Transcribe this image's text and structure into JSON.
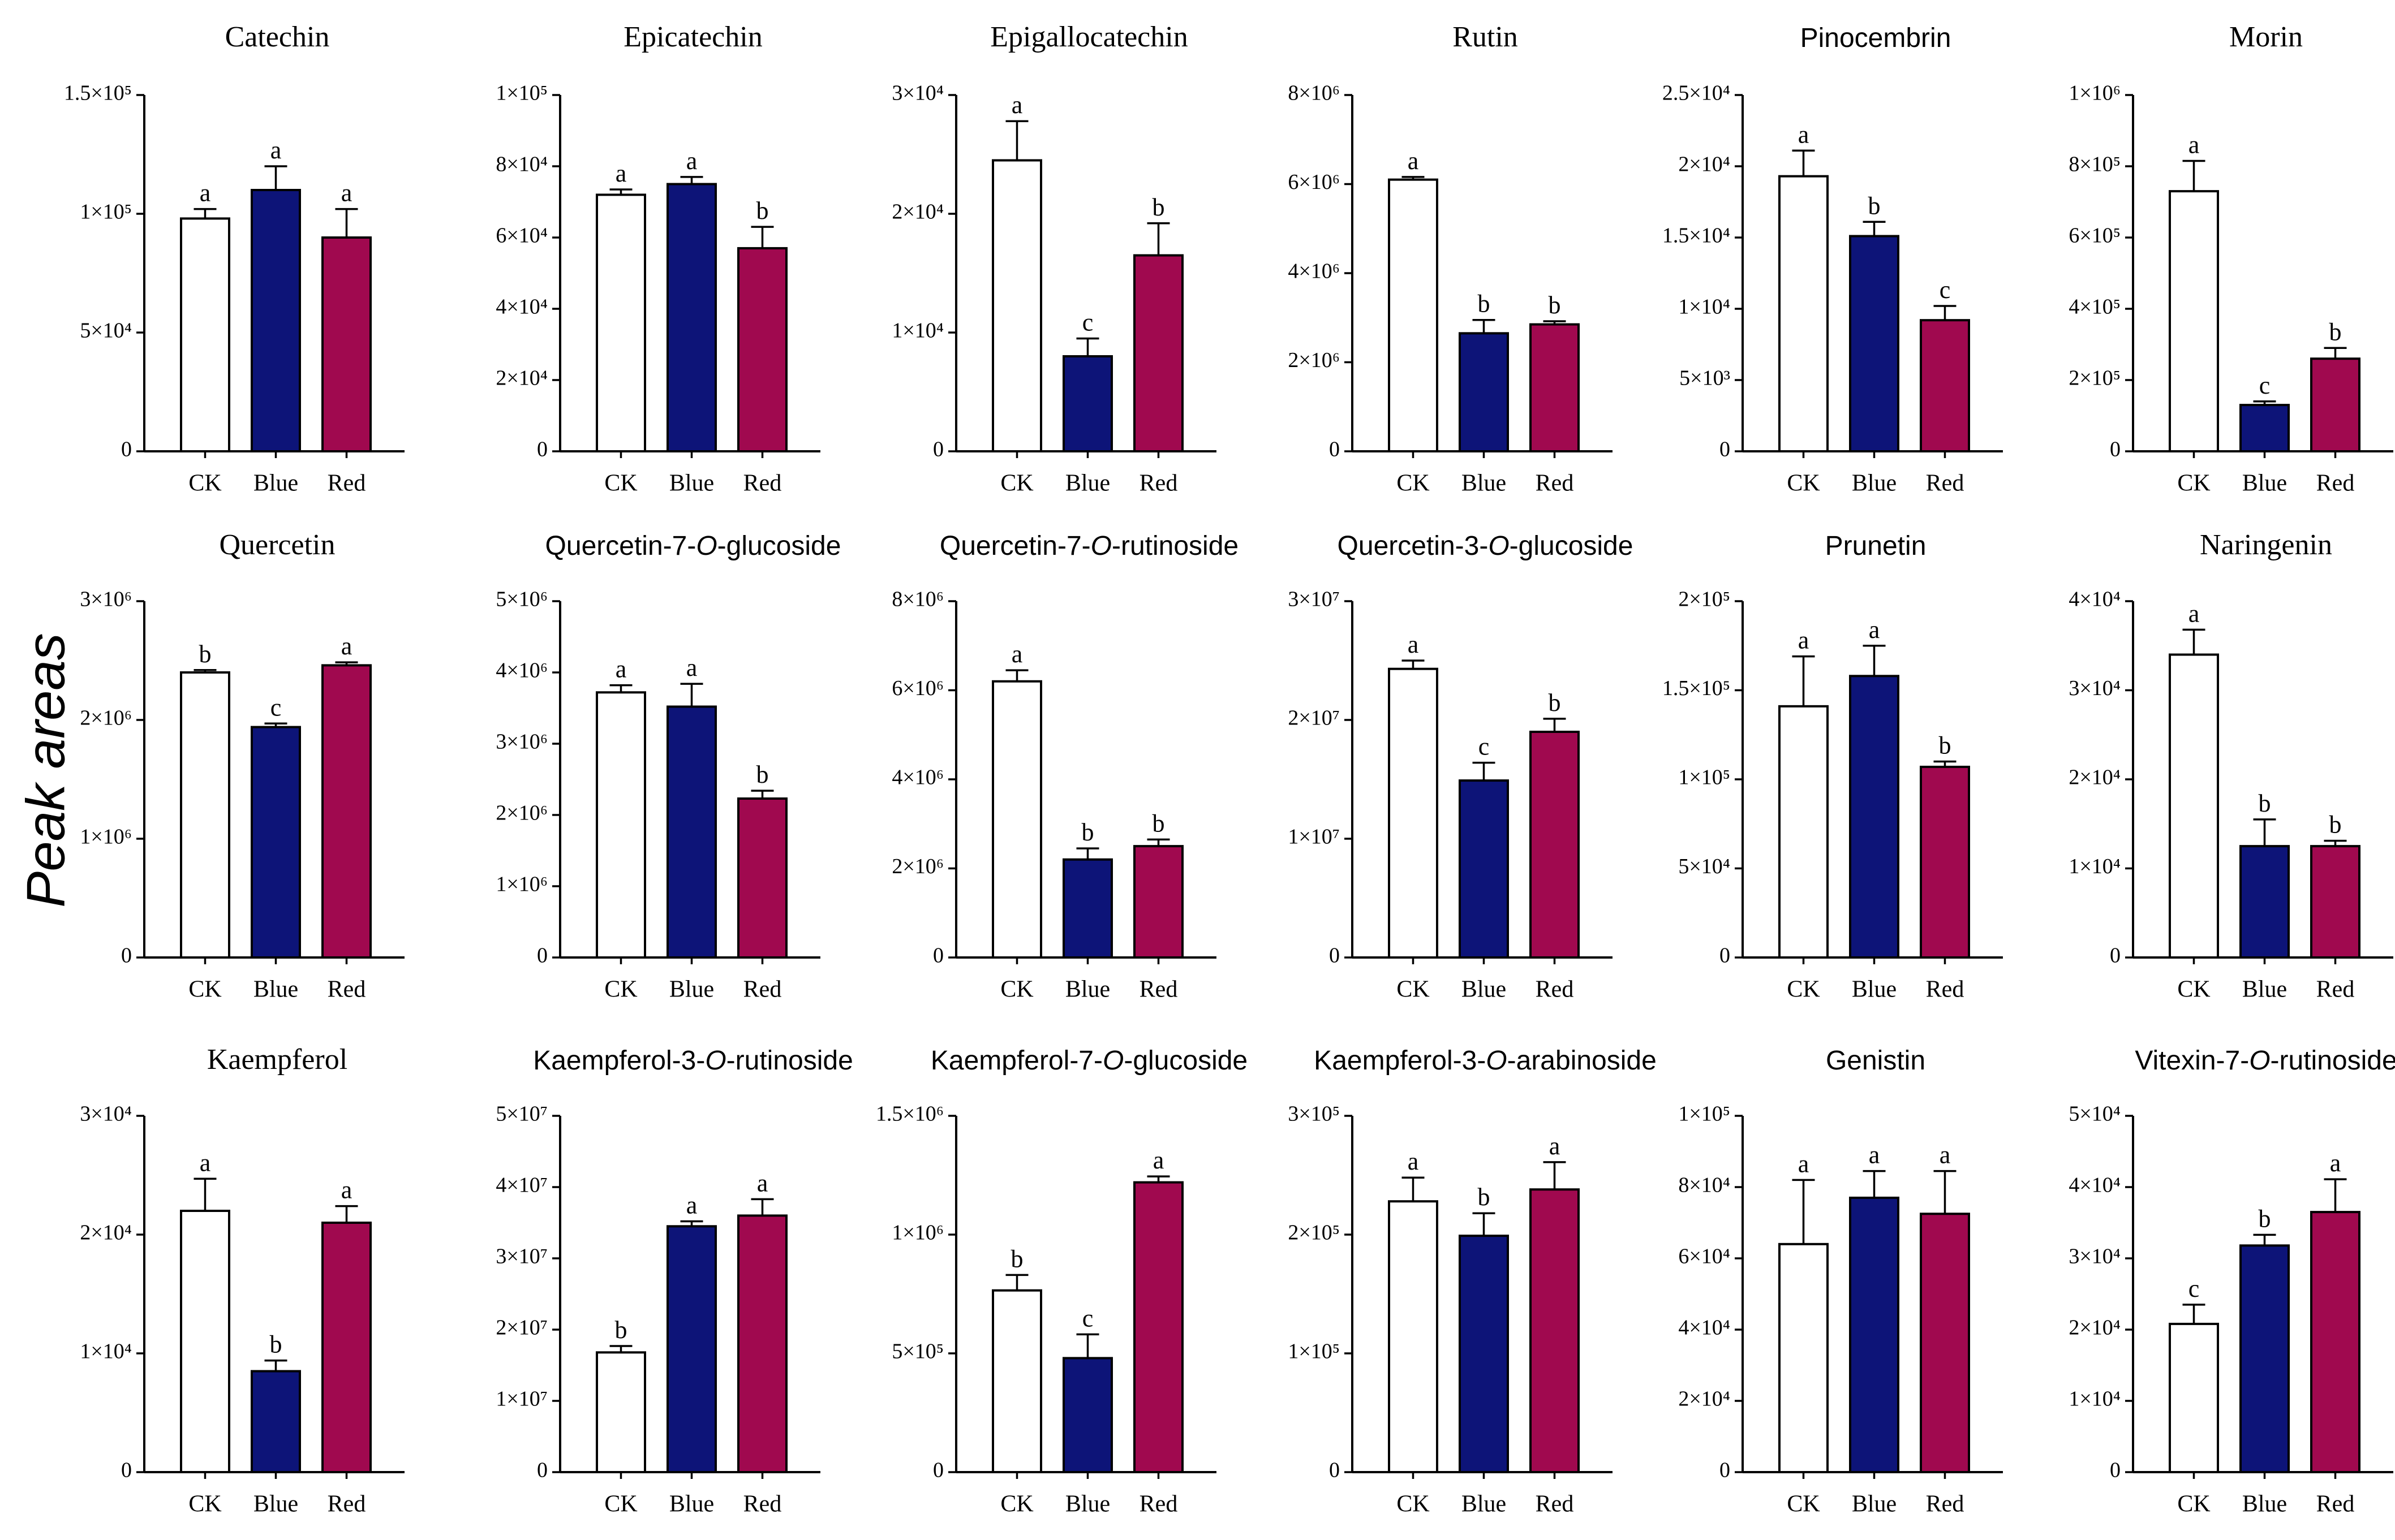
{
  "figure": {
    "ylabel": "Peak areas",
    "colors": {
      "CK": "#ffffff",
      "Blue": "#0d1478",
      "Red": "#a0094f",
      "axis": "#000000"
    }
  },
  "chart_data": [
    {
      "type": "bar",
      "title": "Catechin",
      "title_parts": [
        {
          "t": "Catechin"
        }
      ],
      "categories": [
        "CK",
        "Blue",
        "Red"
      ],
      "values": [
        98000,
        110000,
        90000
      ],
      "errors": [
        4000,
        10000,
        12000
      ],
      "letters": [
        "a",
        "a",
        "a"
      ],
      "ylim": [
        0,
        150000
      ],
      "yticks": [
        {
          "value": 0,
          "label": "0"
        },
        {
          "value": 50000,
          "label": "5×10⁴"
        },
        {
          "value": 100000,
          "label": "1×10⁵"
        },
        {
          "value": 150000,
          "label": "1.5×10⁵"
        }
      ]
    },
    {
      "type": "bar",
      "title": "Epicatechin",
      "title_parts": [
        {
          "t": "Epicatechin"
        }
      ],
      "categories": [
        "CK",
        "Blue",
        "Red"
      ],
      "values": [
        72000,
        75000,
        57000
      ],
      "errors": [
        1500,
        2000,
        6000
      ],
      "letters": [
        "a",
        "a",
        "b"
      ],
      "ylim": [
        0,
        100000
      ],
      "yticks": [
        {
          "value": 0,
          "label": "0"
        },
        {
          "value": 20000,
          "label": "2×10⁴"
        },
        {
          "value": 40000,
          "label": "4×10⁴"
        },
        {
          "value": 60000,
          "label": "6×10⁴"
        },
        {
          "value": 80000,
          "label": "8×10⁴"
        },
        {
          "value": 100000,
          "label": "1×10⁵"
        }
      ]
    },
    {
      "type": "bar",
      "title": "Epigallocatechin",
      "title_parts": [
        {
          "t": "Epigallocatechin"
        }
      ],
      "categories": [
        "CK",
        "Blue",
        "Red"
      ],
      "values": [
        24500,
        8000,
        16500
      ],
      "errors": [
        3300,
        1500,
        2700
      ],
      "letters": [
        "a",
        "c",
        "b"
      ],
      "ylim": [
        0,
        30000
      ],
      "yticks": [
        {
          "value": 0,
          "label": "0"
        },
        {
          "value": 10000,
          "label": "1×10⁴"
        },
        {
          "value": 20000,
          "label": "2×10⁴"
        },
        {
          "value": 30000,
          "label": "3×10⁴"
        }
      ]
    },
    {
      "type": "bar",
      "title": "Rutin",
      "title_parts": [
        {
          "t": "Rutin"
        }
      ],
      "categories": [
        "CK",
        "Blue",
        "Red"
      ],
      "values": [
        6100000,
        2650000,
        2850000
      ],
      "errors": [
        60000,
        300000,
        70000
      ],
      "letters": [
        "a",
        "b",
        "b"
      ],
      "ylim": [
        0,
        8000000
      ],
      "yticks": [
        {
          "value": 0,
          "label": "0"
        },
        {
          "value": 2000000,
          "label": "2×10⁶"
        },
        {
          "value": 4000000,
          "label": "4×10⁶"
        },
        {
          "value": 6000000,
          "label": "6×10⁶"
        },
        {
          "value": 8000000,
          "label": "8×10⁶"
        }
      ]
    },
    {
      "type": "bar",
      "title": "Pinocembrin",
      "title_parts": [
        {
          "t": "Pinocembrin"
        }
      ],
      "categories": [
        "CK",
        "Blue",
        "Red"
      ],
      "values": [
        19300,
        15100,
        9200
      ],
      "errors": [
        1800,
        1000,
        1000
      ],
      "letters": [
        "a",
        "b",
        "c"
      ],
      "ylim": [
        0,
        25000
      ],
      "yticks": [
        {
          "value": 0,
          "label": "0"
        },
        {
          "value": 5000,
          "label": "5×10³"
        },
        {
          "value": 10000,
          "label": "1×10⁴"
        },
        {
          "value": 15000,
          "label": "1.5×10⁴"
        },
        {
          "value": 20000,
          "label": "2×10⁴"
        },
        {
          "value": 25000,
          "label": "2.5×10⁴"
        }
      ]
    },
    {
      "type": "bar",
      "title": "Morin",
      "title_parts": [
        {
          "t": "Morin"
        }
      ],
      "categories": [
        "CK",
        "Blue",
        "Red"
      ],
      "values": [
        730000,
        130000,
        260000
      ],
      "errors": [
        85000,
        10000,
        30000
      ],
      "letters": [
        "a",
        "c",
        "b"
      ],
      "ylim": [
        0,
        1000000
      ],
      "yticks": [
        {
          "value": 0,
          "label": "0"
        },
        {
          "value": 200000,
          "label": "2×10⁵"
        },
        {
          "value": 400000,
          "label": "4×10⁵"
        },
        {
          "value": 600000,
          "label": "6×10⁵"
        },
        {
          "value": 800000,
          "label": "8×10⁵"
        },
        {
          "value": 1000000,
          "label": "1×10⁶"
        }
      ]
    },
    {
      "type": "bar",
      "title": "Quercetin",
      "title_parts": [
        {
          "t": "Quercetin"
        }
      ],
      "categories": [
        "CK",
        "Blue",
        "Red"
      ],
      "values": [
        2400000,
        1940000,
        2460000
      ],
      "errors": [
        20000,
        30000,
        25000
      ],
      "letters": [
        "b",
        "c",
        "a"
      ],
      "ylim": [
        0,
        3000000
      ],
      "yticks": [
        {
          "value": 0,
          "label": "0"
        },
        {
          "value": 1000000,
          "label": "1×10⁶"
        },
        {
          "value": 2000000,
          "label": "2×10⁶"
        },
        {
          "value": 3000000,
          "label": "3×10⁶"
        }
      ]
    },
    {
      "type": "bar",
      "title": "Quercetin-7-O-glucoside",
      "title_parts": [
        {
          "t": "Quercetin-7-"
        },
        {
          "t": "O",
          "i": true
        },
        {
          "t": "-glucoside"
        }
      ],
      "categories": [
        "CK",
        "Blue",
        "Red"
      ],
      "values": [
        3720000,
        3520000,
        2230000
      ],
      "errors": [
        100000,
        320000,
        110000
      ],
      "letters": [
        "a",
        "a",
        "b"
      ],
      "ylim": [
        0,
        5000000
      ],
      "yticks": [
        {
          "value": 0,
          "label": "0"
        },
        {
          "value": 1000000,
          "label": "1×10⁶"
        },
        {
          "value": 2000000,
          "label": "2×10⁶"
        },
        {
          "value": 3000000,
          "label": "3×10⁶"
        },
        {
          "value": 4000000,
          "label": "4×10⁶"
        },
        {
          "value": 5000000,
          "label": "5×10⁶"
        }
      ]
    },
    {
      "type": "bar",
      "title": "Quercetin-7-O-rutinoside",
      "title_parts": [
        {
          "t": "Quercetin-7-"
        },
        {
          "t": "O",
          "i": true
        },
        {
          "t": "-rutinoside"
        }
      ],
      "categories": [
        "CK",
        "Blue",
        "Red"
      ],
      "values": [
        6200000,
        2200000,
        2500000
      ],
      "errors": [
        250000,
        250000,
        150000
      ],
      "letters": [
        "a",
        "b",
        "b"
      ],
      "ylim": [
        0,
        8000000
      ],
      "yticks": [
        {
          "value": 0,
          "label": "0"
        },
        {
          "value": 2000000,
          "label": "2×10⁶"
        },
        {
          "value": 4000000,
          "label": "4×10⁶"
        },
        {
          "value": 6000000,
          "label": "6×10⁶"
        },
        {
          "value": 8000000,
          "label": "8×10⁶"
        }
      ]
    },
    {
      "type": "bar",
      "title": "Quercetin-3-O-glucoside",
      "title_parts": [
        {
          "t": "Quercetin-3-"
        },
        {
          "t": "O",
          "i": true
        },
        {
          "t": "-glucoside"
        }
      ],
      "categories": [
        "CK",
        "Blue",
        "Red"
      ],
      "values": [
        24300000,
        14900000,
        19000000
      ],
      "errors": [
        700000,
        1500000,
        1100000
      ],
      "letters": [
        "a",
        "c",
        "b"
      ],
      "ylim": [
        0,
        30000000
      ],
      "yticks": [
        {
          "value": 0,
          "label": "0"
        },
        {
          "value": 10000000,
          "label": "1×10⁷"
        },
        {
          "value": 20000000,
          "label": "2×10⁷"
        },
        {
          "value": 30000000,
          "label": "3×10⁷"
        }
      ]
    },
    {
      "type": "bar",
      "title": "Prunetin",
      "title_parts": [
        {
          "t": "Prunetin"
        }
      ],
      "categories": [
        "CK",
        "Blue",
        "Red"
      ],
      "values": [
        141000,
        158000,
        107000
      ],
      "errors": [
        28000,
        17000,
        3000
      ],
      "letters": [
        "a",
        "a",
        "b"
      ],
      "ylim": [
        0,
        200000
      ],
      "yticks": [
        {
          "value": 0,
          "label": "0"
        },
        {
          "value": 50000,
          "label": "5×10⁴"
        },
        {
          "value": 100000,
          "label": "1×10⁵"
        },
        {
          "value": 150000,
          "label": "1.5×10⁵"
        },
        {
          "value": 200000,
          "label": "2×10⁵"
        }
      ]
    },
    {
      "type": "bar",
      "title": "Naringenin",
      "title_parts": [
        {
          "t": "Naringenin"
        }
      ],
      "categories": [
        "CK",
        "Blue",
        "Red"
      ],
      "values": [
        34000,
        12500,
        12500
      ],
      "errors": [
        2800,
        3000,
        600
      ],
      "letters": [
        "a",
        "b",
        "b"
      ],
      "ylim": [
        0,
        40000
      ],
      "yticks": [
        {
          "value": 0,
          "label": "0"
        },
        {
          "value": 10000,
          "label": "1×10⁴"
        },
        {
          "value": 20000,
          "label": "2×10⁴"
        },
        {
          "value": 30000,
          "label": "3×10⁴"
        },
        {
          "value": 40000,
          "label": "4×10⁴"
        }
      ]
    },
    {
      "type": "bar",
      "title": "Kaempferol",
      "title_parts": [
        {
          "t": "Kaempferol"
        }
      ],
      "categories": [
        "CK",
        "Blue",
        "Red"
      ],
      "values": [
        22000,
        8500,
        21000
      ],
      "errors": [
        2700,
        900,
        1400
      ],
      "letters": [
        "a",
        "b",
        "a"
      ],
      "ylim": [
        0,
        30000
      ],
      "yticks": [
        {
          "value": 0,
          "label": "0"
        },
        {
          "value": 10000,
          "label": "1×10⁴"
        },
        {
          "value": 20000,
          "label": "2×10⁴"
        },
        {
          "value": 30000,
          "label": "3×10⁴"
        }
      ]
    },
    {
      "type": "bar",
      "title": "Kaempferol-3-O-rutinoside",
      "title_parts": [
        {
          "t": "Kaempferol-3-"
        },
        {
          "t": "O",
          "i": true
        },
        {
          "t": "-rutinoside"
        }
      ],
      "categories": [
        "CK",
        "Blue",
        "Red"
      ],
      "values": [
        16800000,
        34500000,
        36000000
      ],
      "errors": [
        900000,
        700000,
        2300000
      ],
      "letters": [
        "b",
        "a",
        "a"
      ],
      "ylim": [
        0,
        50000000
      ],
      "yticks": [
        {
          "value": 0,
          "label": "0"
        },
        {
          "value": 10000000,
          "label": "1×10⁷"
        },
        {
          "value": 20000000,
          "label": "2×10⁷"
        },
        {
          "value": 30000000,
          "label": "3×10⁷"
        },
        {
          "value": 40000000,
          "label": "4×10⁷"
        },
        {
          "value": 50000000,
          "label": "5×10⁷"
        }
      ]
    },
    {
      "type": "bar",
      "title": "Kaempferol-7-O-glucoside",
      "title_parts": [
        {
          "t": "Kaempferol-7-"
        },
        {
          "t": "O",
          "i": true
        },
        {
          "t": "-glucoside"
        }
      ],
      "categories": [
        "CK",
        "Blue",
        "Red"
      ],
      "values": [
        765000,
        480000,
        1220000
      ],
      "errors": [
        65000,
        100000,
        25000
      ],
      "letters": [
        "b",
        "c",
        "a"
      ],
      "ylim": [
        0,
        1500000
      ],
      "yticks": [
        {
          "value": 0,
          "label": "0"
        },
        {
          "value": 500000,
          "label": "5×10⁵"
        },
        {
          "value": 1000000,
          "label": "1×10⁶"
        },
        {
          "value": 1500000,
          "label": "1.5×10⁶"
        }
      ]
    },
    {
      "type": "bar",
      "title": "Kaempferol-3-O-arabinoside",
      "title_parts": [
        {
          "t": "Kaempferol-3-"
        },
        {
          "t": "O",
          "i": true
        },
        {
          "t": "-arabinoside"
        }
      ],
      "categories": [
        "CK",
        "Blue",
        "Red"
      ],
      "values": [
        228000,
        199000,
        238000
      ],
      "errors": [
        20000,
        19000,
        23000
      ],
      "letters": [
        "a",
        "b",
        "a"
      ],
      "ylim": [
        0,
        300000
      ],
      "yticks": [
        {
          "value": 0,
          "label": "0"
        },
        {
          "value": 100000,
          "label": "1×10⁵"
        },
        {
          "value": 200000,
          "label": "2×10⁵"
        },
        {
          "value": 300000,
          "label": "3×10⁵"
        }
      ]
    },
    {
      "type": "bar",
      "title": "Genistin",
      "title_parts": [
        {
          "t": "Genistin"
        }
      ],
      "categories": [
        "CK",
        "Blue",
        "Red"
      ],
      "values": [
        64000,
        77000,
        72500
      ],
      "errors": [
        18000,
        7500,
        12000
      ],
      "letters": [
        "a",
        "a",
        "a"
      ],
      "ylim": [
        0,
        100000
      ],
      "yticks": [
        {
          "value": 0,
          "label": "0"
        },
        {
          "value": 20000,
          "label": "2×10⁴"
        },
        {
          "value": 40000,
          "label": "4×10⁴"
        },
        {
          "value": 60000,
          "label": "6×10⁴"
        },
        {
          "value": 80000,
          "label": "8×10⁴"
        },
        {
          "value": 100000,
          "label": "1×10⁵"
        }
      ]
    },
    {
      "type": "bar",
      "title": "Vitexin-7-O-rutinoside",
      "title_parts": [
        {
          "t": "Vitexin-7-"
        },
        {
          "t": "O",
          "i": true
        },
        {
          "t": "-rutinoside"
        }
      ],
      "categories": [
        "CK",
        "Blue",
        "Red"
      ],
      "values": [
        20800,
        31800,
        36500
      ],
      "errors": [
        2700,
        1500,
        4600
      ],
      "letters": [
        "c",
        "b",
        "a"
      ],
      "ylim": [
        0,
        50000
      ],
      "yticks": [
        {
          "value": 0,
          "label": "0"
        },
        {
          "value": 10000,
          "label": "1×10⁴"
        },
        {
          "value": 20000,
          "label": "2×10⁴"
        },
        {
          "value": 30000,
          "label": "3×10⁴"
        },
        {
          "value": 40000,
          "label": "4×10⁴"
        },
        {
          "value": 50000,
          "label": "5×10⁴"
        }
      ]
    }
  ]
}
